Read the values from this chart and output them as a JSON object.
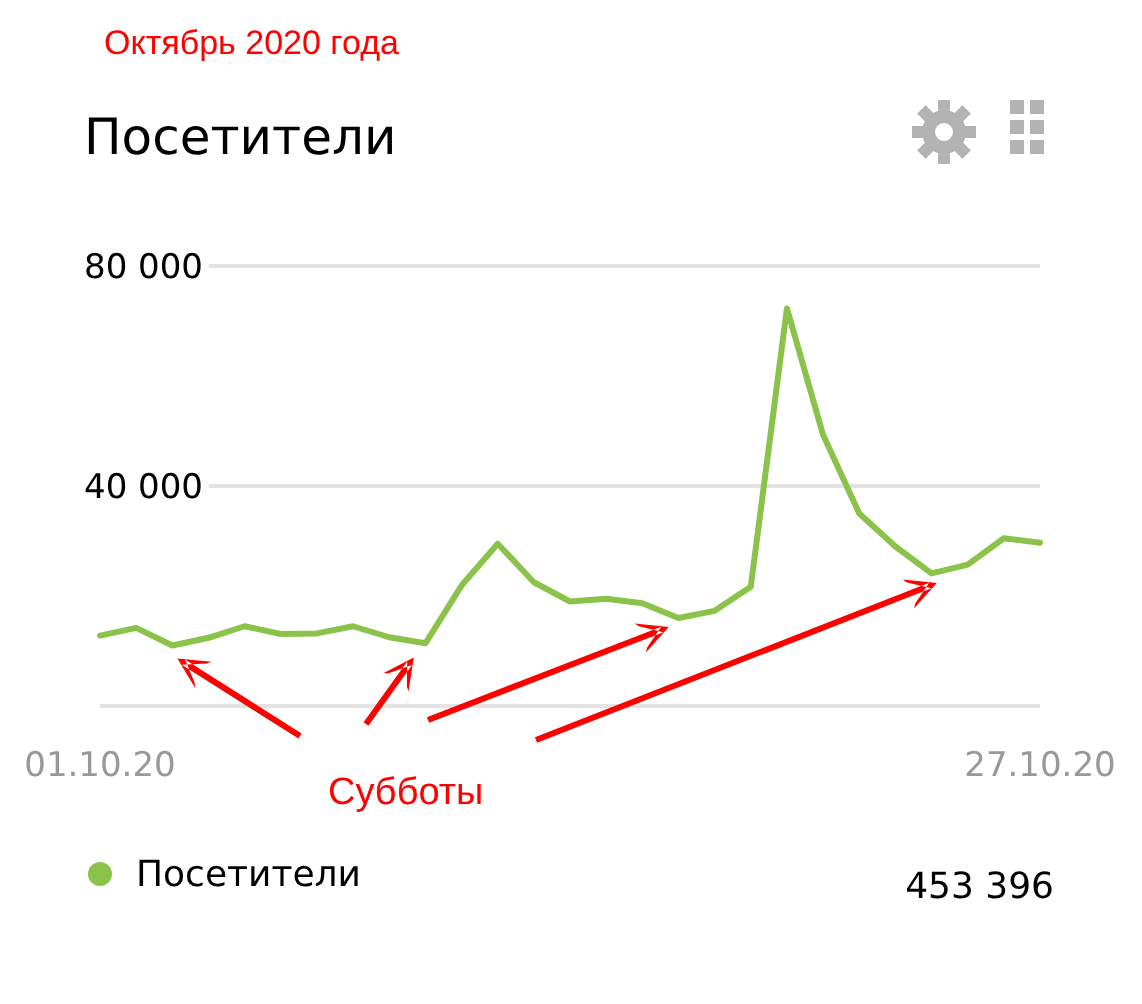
{
  "chart_data": {
    "type": "line",
    "title": "Посетители",
    "subtitle": "Октябрь 2020 года",
    "x": [
      "2020-10-01",
      "2020-10-02",
      "2020-10-03",
      "2020-10-04",
      "2020-10-05",
      "2020-10-06",
      "2020-10-07",
      "2020-10-08",
      "2020-10-09",
      "2020-10-10",
      "2020-10-11",
      "2020-10-12",
      "2020-10-13",
      "2020-10-14",
      "2020-10-15",
      "2020-10-16",
      "2020-10-17",
      "2020-10-18",
      "2020-10-19",
      "2020-10-20",
      "2020-10-21",
      "2020-10-22",
      "2020-10-23",
      "2020-10-24",
      "2020-10-25",
      "2020-10-26",
      "2020-10-27"
    ],
    "series": [
      {
        "name": "Посетители",
        "color": "#8bc34a",
        "values": [
          12800,
          14200,
          11000,
          12400,
          14500,
          13100,
          13200,
          14500,
          12500,
          11400,
          21900,
          29500,
          22500,
          19000,
          19500,
          18700,
          16000,
          17300,
          21700,
          72300,
          49300,
          35000,
          29000,
          24100,
          25700,
          30500,
          29700
        ]
      }
    ],
    "xlim": [
      "2020-10-01",
      "2020-10-27"
    ],
    "xticks": [
      {
        "value": "2020-10-01",
        "label": "01.10.20"
      },
      {
        "value": "2020-10-27",
        "label": "27.10.20"
      }
    ],
    "ylim": [
      0,
      80000
    ],
    "yticks": [
      {
        "value": 0,
        "label": null
      },
      {
        "value": 40000,
        "label": "40 000"
      },
      {
        "value": 80000,
        "label": "80 000"
      }
    ],
    "grid": "y",
    "legend": "bottom",
    "marker": "none",
    "line_style": "solid",
    "annotations": [
      "Субботы",
      {
        "text": "453 396"
      }
    ]
  }
}
